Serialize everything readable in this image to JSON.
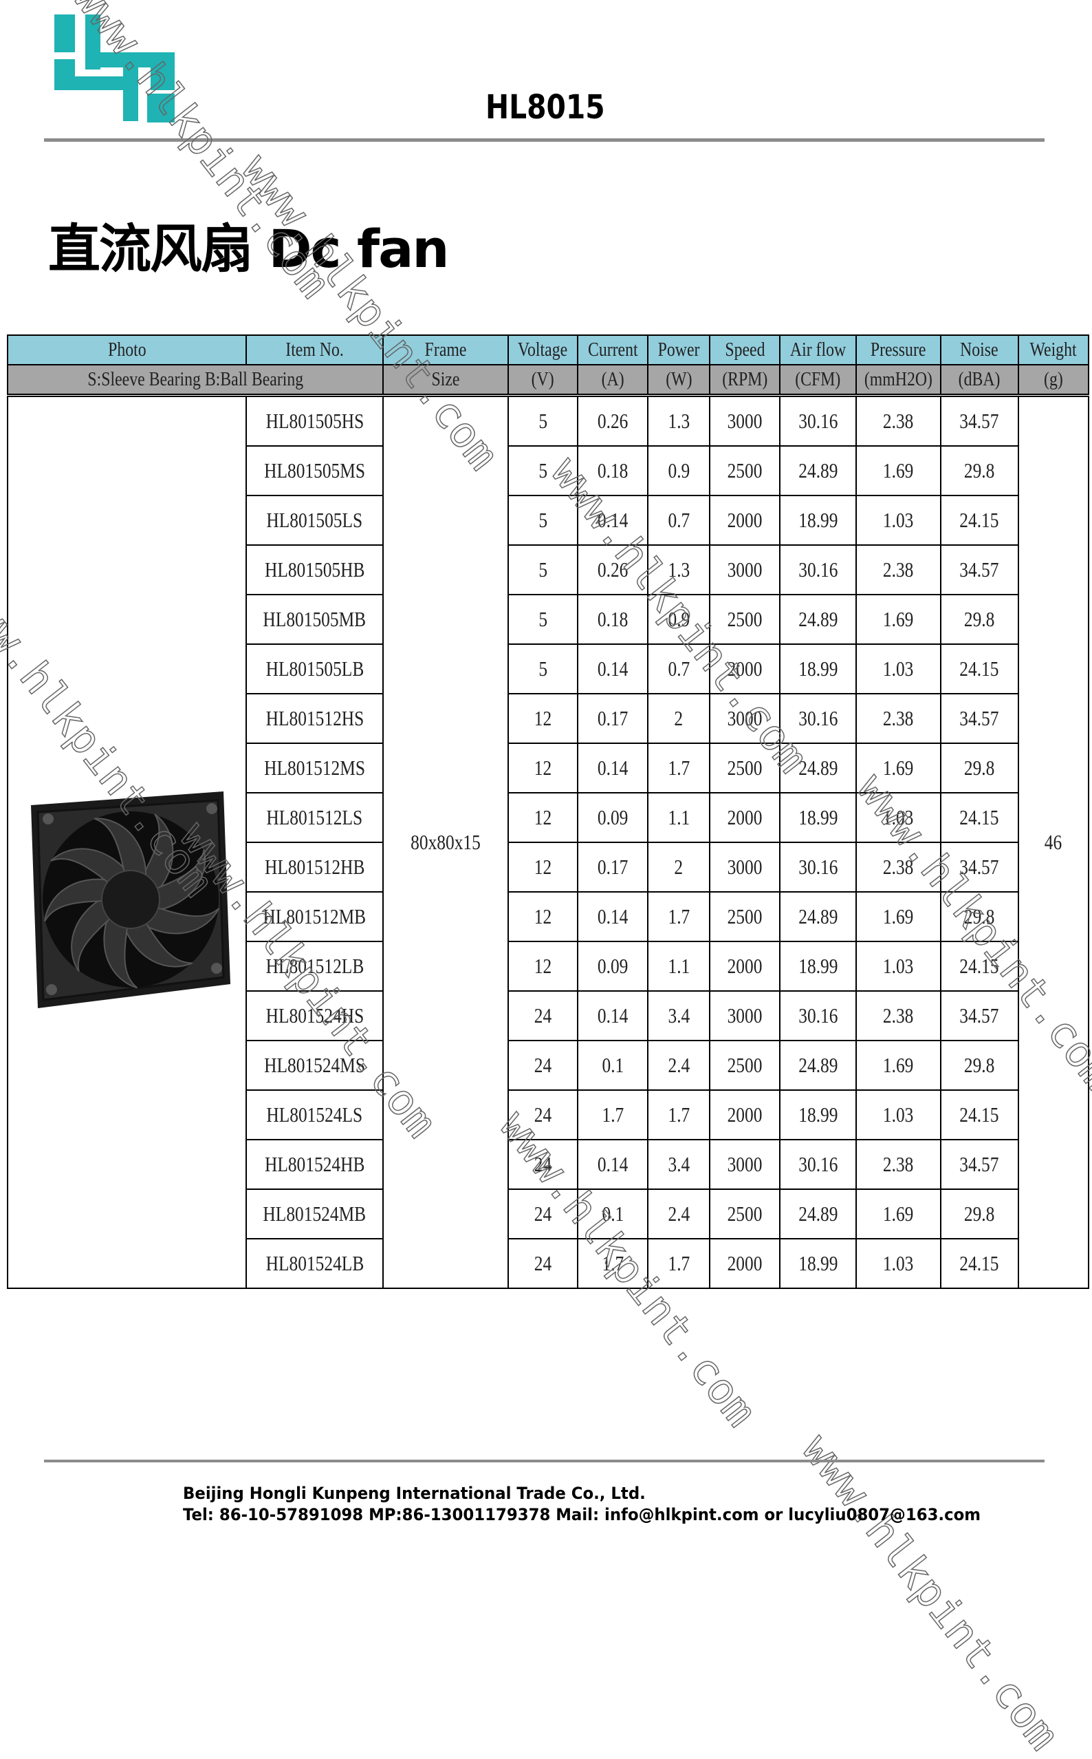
{
  "header": {
    "doc_code": "HL8015",
    "title": "直流风扇 Dc fan",
    "logo_color": "#1fb3b3"
  },
  "table": {
    "header_row1": [
      "Photo",
      "Item No.",
      "Frame",
      "Voltage",
      "Current",
      "Power",
      "Speed",
      "Air flow",
      "Pressure",
      "Noise",
      "Weight"
    ],
    "header_row2": {
      "bearing_note": "S:Sleeve Bearing B:Ball Bearing",
      "frame": "Size",
      "units": [
        "(V)",
        "(A)",
        "(W)",
        "(RPM)",
        "(CFM)",
        "(mmH2O)",
        "(dBA)",
        "(g)"
      ]
    },
    "frame_size": "80x80x15",
    "weight": "46",
    "header_colors": {
      "row1": "#92cddc",
      "row2": "#a6a6a6"
    },
    "rows": [
      [
        "HL801505HS",
        "5",
        "0.26",
        "1.3",
        "3000",
        "30.16",
        "2.38",
        "34.57"
      ],
      [
        "HL801505MS",
        "5",
        "0.18",
        "0.9",
        "2500",
        "24.89",
        "1.69",
        "29.8"
      ],
      [
        "HL801505LS",
        "5",
        "0.14",
        "0.7",
        "2000",
        "18.99",
        "1.03",
        "24.15"
      ],
      [
        "HL801505HB",
        "5",
        "0.26",
        "1.3",
        "3000",
        "30.16",
        "2.38",
        "34.57"
      ],
      [
        "HL801505MB",
        "5",
        "0.18",
        "0.9",
        "2500",
        "24.89",
        "1.69",
        "29.8"
      ],
      [
        "HL801505LB",
        "5",
        "0.14",
        "0.7",
        "2000",
        "18.99",
        "1.03",
        "24.15"
      ],
      [
        "HL801512HS",
        "12",
        "0.17",
        "2",
        "3000",
        "30.16",
        "2.38",
        "34.57"
      ],
      [
        "HL801512MS",
        "12",
        "0.14",
        "1.7",
        "2500",
        "24.89",
        "1.69",
        "29.8"
      ],
      [
        "HL801512LS",
        "12",
        "0.09",
        "1.1",
        "2000",
        "18.99",
        "1.03",
        "24.15"
      ],
      [
        "HL801512HB",
        "12",
        "0.17",
        "2",
        "3000",
        "30.16",
        "2.38",
        "34.57"
      ],
      [
        "HL801512MB",
        "12",
        "0.14",
        "1.7",
        "2500",
        "24.89",
        "1.69",
        "29.8"
      ],
      [
        "HL801512LB",
        "12",
        "0.09",
        "1.1",
        "2000",
        "18.99",
        "1.03",
        "24.15"
      ],
      [
        "HL801524HS",
        "24",
        "0.14",
        "3.4",
        "3000",
        "30.16",
        "2.38",
        "34.57"
      ],
      [
        "HL801524MS",
        "24",
        "0.1",
        "2.4",
        "2500",
        "24.89",
        "1.69",
        "29.8"
      ],
      [
        "HL801524LS",
        "24",
        "1.7",
        "1.7",
        "2000",
        "18.99",
        "1.03",
        "24.15"
      ],
      [
        "HL801524HB",
        "24",
        "0.14",
        "3.4",
        "3000",
        "30.16",
        "2.38",
        "34.57"
      ],
      [
        "HL801524MB",
        "24",
        "0.1",
        "2.4",
        "2500",
        "24.89",
        "1.69",
        "29.8"
      ],
      [
        "HL801524LB",
        "24",
        "1.7",
        "1.7",
        "2000",
        "18.99",
        "1.03",
        "24.15"
      ]
    ]
  },
  "watermark": "www.hlkpint.com",
  "footer": {
    "company": "Beijing Hongli Kunpeng International Trade Co., Ltd.",
    "contact": "Tel: 86-10-57891098  MP:86-13001179378  Mail: info@hlkpint.com or lucyliu0807@163.com"
  }
}
